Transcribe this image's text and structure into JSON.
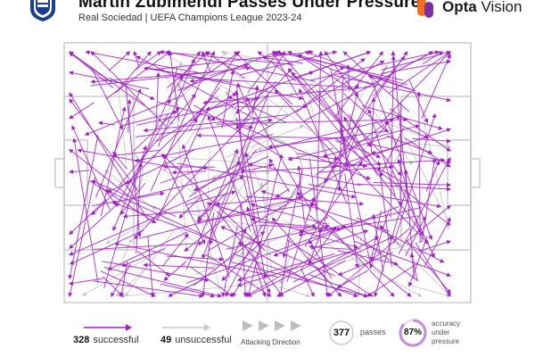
{
  "header": {
    "title": "Martin Zubimendi Passes Under Pressure",
    "subtitle": "Real Sociedad | UEFA Champions League 2023-24",
    "brand_main": "Opta",
    "brand_sub": "Vision"
  },
  "colors": {
    "successful": "#a020c0",
    "unsuccessful": "#c8c8c8",
    "pitch_line": "#c8c8c8",
    "brand_orange": "#f07020",
    "brand_purple": "#7a2ea0"
  },
  "stats": {
    "successful_count": "328",
    "successful_label": "successful",
    "unsuccessful_count": "49",
    "unsuccessful_label": "unsuccessful",
    "direction_label": "Attacking Direction",
    "passes_count": "377",
    "passes_label": "passes",
    "accuracy_value": "87%",
    "accuracy_fraction": 0.87,
    "accuracy_label_1": "accuracy",
    "accuracy_label_2": "under",
    "accuracy_label_3": "pressure"
  },
  "icons": [
    "club-crest-icon",
    "opta-logo-icon",
    "attacking-direction-arrows-icon"
  ]
}
